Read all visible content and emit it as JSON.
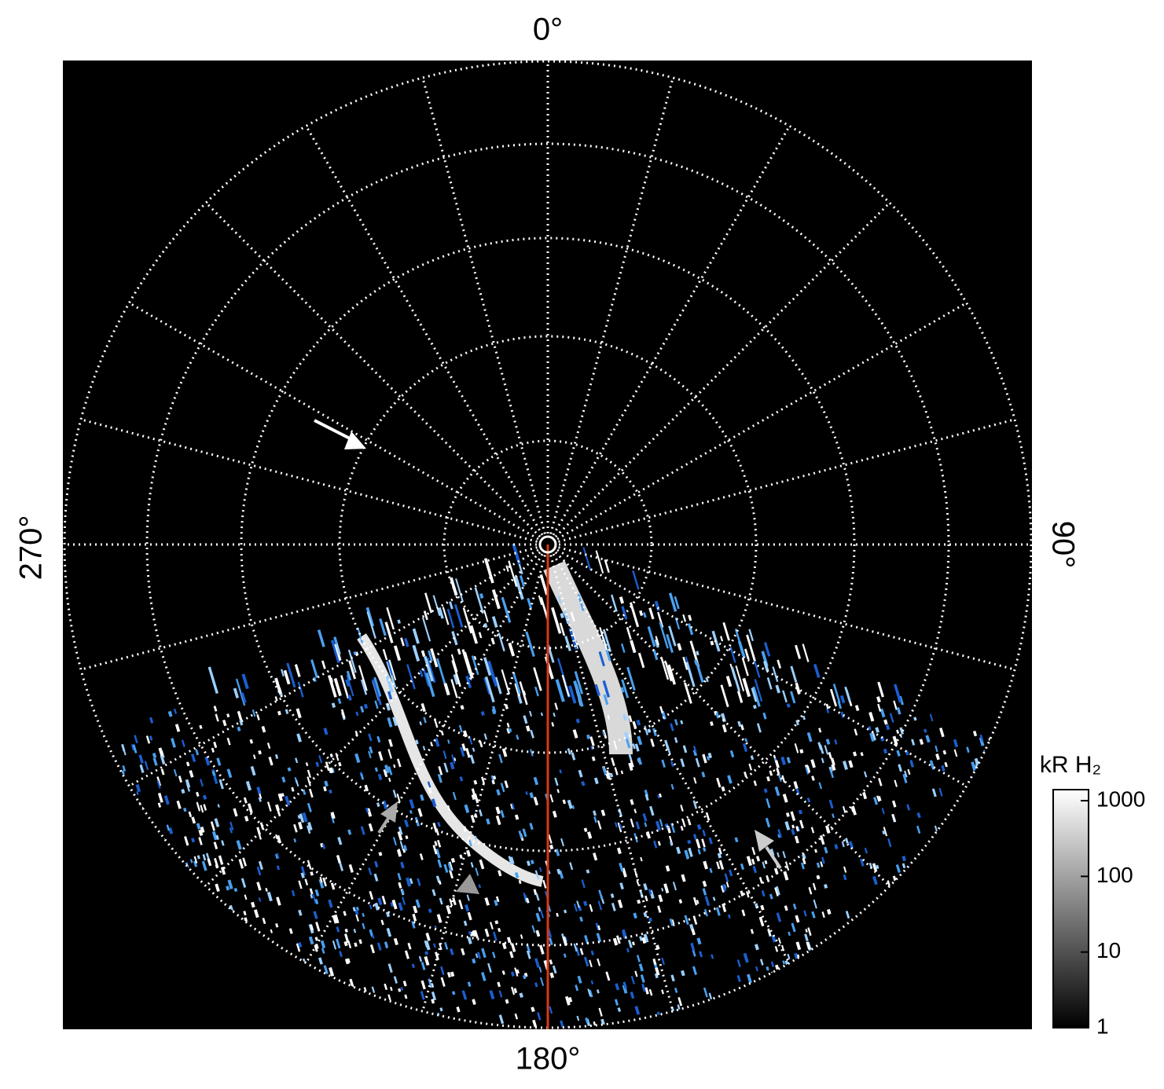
{
  "figure": {
    "angle_labels": {
      "top": "0°",
      "right": "90°",
      "bottom": "180°",
      "left": "270°"
    },
    "colorbar": {
      "label": "kR H₂",
      "scale": "log",
      "lim": [
        1,
        1400
      ],
      "ticks": [
        1,
        10,
        100,
        1000
      ]
    }
  }
}
